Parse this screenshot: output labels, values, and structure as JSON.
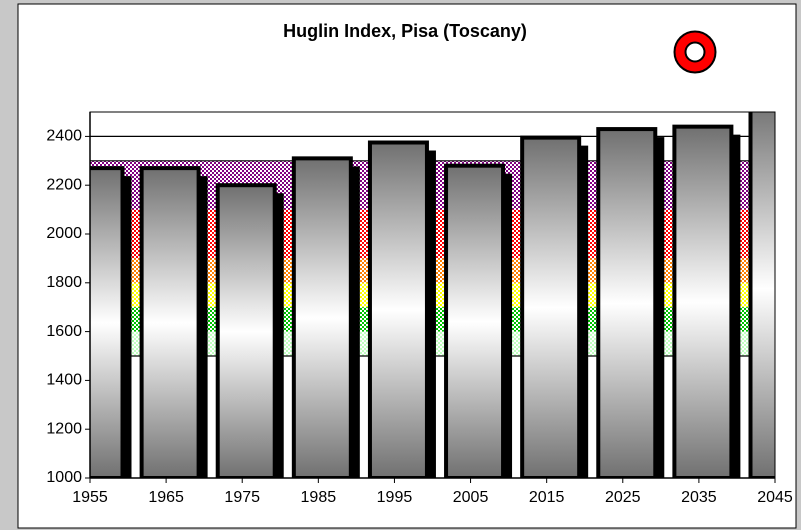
{
  "chart_data": {
    "type": "bar",
    "title": "Huglin Index, Pisa (Toscany)",
    "x": [
      1955,
      1965,
      1975,
      1985,
      1995,
      2005,
      2015,
      2025,
      2035,
      2045
    ],
    "values": [
      2270,
      2270,
      2200,
      2310,
      2375,
      2280,
      2395,
      2430,
      2440,
      2550
    ],
    "xlim": [
      1955,
      2045
    ],
    "xticks": [
      1955,
      1965,
      1975,
      1985,
      1995,
      2005,
      2015,
      2025,
      2035,
      2045
    ],
    "ylim": [
      1000,
      2500
    ],
    "yticks": [
      1000,
      1200,
      1400,
      1600,
      1800,
      2000,
      2200,
      2400
    ],
    "hlines": [
      2400,
      2300,
      1500
    ],
    "bands": [
      {
        "from": 2100,
        "to": 2300,
        "color": "#800080"
      },
      {
        "from": 1900,
        "to": 2100,
        "color": "#ff0000"
      },
      {
        "from": 1800,
        "to": 1900,
        "color": "#ff8000"
      },
      {
        "from": 1700,
        "to": 1800,
        "color": "#ffff00"
      },
      {
        "from": 1600,
        "to": 1700,
        "color": "#00c000"
      },
      {
        "from": 1500,
        "to": 1600,
        "color": "#c0ffc0"
      }
    ],
    "color": "#808080"
  }
}
